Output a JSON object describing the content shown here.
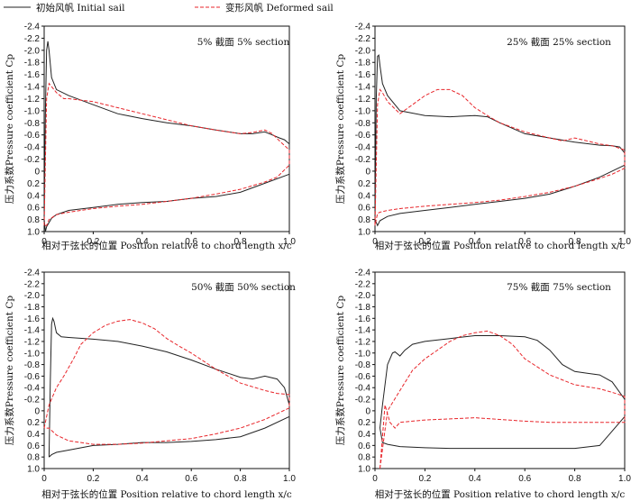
{
  "legend": {
    "initial": "初始风帆 Initial sail",
    "deformed": "变形风帆 Deformed sail"
  },
  "colors": {
    "initial": "#222222",
    "deformed": "#e8262b",
    "axis": "#111111"
  },
  "chart_data": [
    {
      "type": "line",
      "title": "5% 截面 5% section",
      "xlabel": "相对于弦长的位置 Position relative to chord length x/c",
      "ylabel": "压力系数Pressure coefficient Cp",
      "xlim": [
        0,
        1.0
      ],
      "ylim": [
        1.0,
        -2.4
      ],
      "xticks": [
        "0",
        "0.2",
        "0.4",
        "0.6",
        "0.8",
        "1.0"
      ],
      "xtick_values": [
        0,
        0.2,
        0.4,
        0.6,
        0.8,
        1.0
      ],
      "yticks": [
        "-2.4",
        "-2.2",
        "-2.0",
        "-1.8",
        "-1.6",
        "-1.4",
        "-1.2",
        "-1.0",
        "-0.8",
        "-0.6",
        "-0.4",
        "-0.2",
        "0",
        "0.2",
        "0.4",
        "0.6",
        "0.8",
        "1.0"
      ],
      "ytick_values": [
        -2.4,
        -2.2,
        -2.0,
        -1.8,
        -1.6,
        -1.4,
        -1.2,
        -1.0,
        -0.8,
        -0.6,
        -0.4,
        -0.2,
        0,
        0.2,
        0.4,
        0.6,
        0.8,
        1.0
      ],
      "series": [
        {
          "name": "初始风帆 Initial sail",
          "style": "solid",
          "x": [
            0.0,
            0.005,
            0.01,
            0.015,
            0.02,
            0.03,
            0.05,
            0.1,
            0.2,
            0.3,
            0.4,
            0.5,
            0.6,
            0.7,
            0.8,
            0.85,
            0.9,
            0.93,
            0.96,
            0.98,
            1.0,
            1.0,
            0.9,
            0.8,
            0.7,
            0.6,
            0.5,
            0.4,
            0.3,
            0.2,
            0.1,
            0.05,
            0.03,
            0.01,
            0.005,
            0.0
          ],
          "y": [
            0.8,
            -1.0,
            -2.0,
            -2.15,
            -2.0,
            -1.55,
            -1.35,
            -1.25,
            -1.1,
            -0.95,
            -0.87,
            -0.8,
            -0.75,
            -0.68,
            -0.62,
            -0.62,
            -0.65,
            -0.6,
            -0.55,
            -0.52,
            -0.45,
            0.05,
            0.2,
            0.35,
            0.42,
            0.45,
            0.5,
            0.52,
            0.55,
            0.6,
            0.65,
            0.72,
            0.78,
            0.92,
            1.0,
            0.8
          ]
        },
        {
          "name": "变形风帆 Deformed sail",
          "style": "dashed",
          "x": [
            0.0,
            0.01,
            0.02,
            0.03,
            0.05,
            0.08,
            0.1,
            0.2,
            0.3,
            0.4,
            0.5,
            0.6,
            0.7,
            0.8,
            0.85,
            0.9,
            0.93,
            0.96,
            1.0,
            1.0,
            0.95,
            0.9,
            0.8,
            0.7,
            0.6,
            0.5,
            0.4,
            0.3,
            0.2,
            0.1,
            0.05,
            0.02,
            0.01,
            0.0
          ],
          "y": [
            0.9,
            -1.2,
            -1.45,
            -1.4,
            -1.3,
            -1.2,
            -1.2,
            -1.15,
            -1.05,
            -0.95,
            -0.85,
            -0.75,
            -0.68,
            -0.62,
            -0.64,
            -0.68,
            -0.62,
            -0.5,
            -0.35,
            -0.1,
            0.1,
            0.18,
            0.3,
            0.38,
            0.45,
            0.5,
            0.55,
            0.58,
            0.62,
            0.68,
            0.72,
            0.8,
            0.9,
            0.9
          ]
        }
      ]
    },
    {
      "type": "line",
      "title": "25% 截面 25% section",
      "xlabel": "相对于弦长的位置 Position relative to chord length x/c",
      "ylabel": "压力系数Pressure coefficient Cp",
      "xlim": [
        0,
        1.0
      ],
      "ylim": [
        1.0,
        -2.4
      ],
      "xticks": [
        "0",
        "0.2",
        "0.4",
        "0.6",
        "0.8",
        "1.0"
      ],
      "xtick_values": [
        0,
        0.2,
        0.4,
        0.6,
        0.8,
        1.0
      ],
      "yticks": [
        "-2.4",
        "-2.2",
        "-2.0",
        "-1.8",
        "-1.6",
        "-1.4",
        "-1.2",
        "-1.0",
        "-0.8",
        "-0.6",
        "-0.4",
        "-0.2",
        "0",
        "0.2",
        "0.4",
        "0.6",
        "0.8",
        "1.0"
      ],
      "ytick_values": [
        -2.4,
        -2.2,
        -2.0,
        -1.8,
        -1.6,
        -1.4,
        -1.2,
        -1.0,
        -0.8,
        -0.6,
        -0.4,
        -0.2,
        0,
        0.2,
        0.4,
        0.6,
        0.8,
        1.0
      ],
      "series": [
        {
          "name": "初始风帆 Initial sail",
          "style": "solid",
          "x": [
            0.0,
            0.005,
            0.01,
            0.015,
            0.02,
            0.03,
            0.05,
            0.1,
            0.2,
            0.3,
            0.4,
            0.45,
            0.5,
            0.6,
            0.7,
            0.8,
            0.9,
            0.95,
            0.98,
            1.0,
            1.0,
            0.9,
            0.8,
            0.7,
            0.6,
            0.5,
            0.4,
            0.3,
            0.2,
            0.1,
            0.05,
            0.02,
            0.01,
            0.0
          ],
          "y": [
            0.8,
            -1.2,
            -1.9,
            -1.92,
            -1.75,
            -1.45,
            -1.25,
            -1.0,
            -0.92,
            -0.9,
            -0.92,
            -0.9,
            -0.8,
            -0.62,
            -0.55,
            -0.48,
            -0.43,
            -0.42,
            -0.4,
            -0.3,
            -0.1,
            0.1,
            0.25,
            0.38,
            0.45,
            0.5,
            0.55,
            0.6,
            0.65,
            0.7,
            0.75,
            0.82,
            0.9,
            0.8
          ]
        },
        {
          "name": "变形风帆 Deformed sail",
          "style": "dashed",
          "x": [
            0.0,
            0.01,
            0.02,
            0.03,
            0.05,
            0.1,
            0.15,
            0.2,
            0.25,
            0.3,
            0.35,
            0.4,
            0.45,
            0.5,
            0.6,
            0.7,
            0.75,
            0.8,
            0.9,
            0.95,
            1.0,
            1.0,
            0.95,
            0.9,
            0.8,
            0.7,
            0.6,
            0.5,
            0.4,
            0.3,
            0.2,
            0.1,
            0.05,
            0.02,
            0.01,
            0.0
          ],
          "y": [
            0.9,
            -1.1,
            -1.35,
            -1.3,
            -1.15,
            -0.95,
            -1.1,
            -1.25,
            -1.35,
            -1.35,
            -1.25,
            -1.05,
            -0.92,
            -0.8,
            -0.65,
            -0.55,
            -0.5,
            -0.55,
            -0.45,
            -0.42,
            -0.35,
            -0.05,
            0.05,
            0.12,
            0.25,
            0.35,
            0.42,
            0.48,
            0.52,
            0.55,
            0.58,
            0.62,
            0.65,
            0.68,
            0.7,
            0.9
          ]
        }
      ]
    },
    {
      "type": "line",
      "title": "50% 截面 50% section",
      "xlabel": "相对于弦长的位置 Position relative to chord length x/c",
      "ylabel": "压力系数Pressure coefficient Cp",
      "xlim": [
        0,
        1.0
      ],
      "ylim": [
        1.0,
        -2.4
      ],
      "xticks": [
        "0",
        "0.2",
        "0.4",
        "0.6",
        "0.8",
        "1.0"
      ],
      "xtick_values": [
        0,
        0.2,
        0.4,
        0.6,
        0.8,
        1.0
      ],
      "yticks": [
        "-2.4",
        "-2.2",
        "-2.0",
        "-1.8",
        "-1.6",
        "-1.4",
        "-1.2",
        "-1.0",
        "-0.8",
        "-0.6",
        "-0.4",
        "-0.2",
        "0",
        "0.2",
        "0.4",
        "0.6",
        "0.8",
        "1.0"
      ],
      "ytick_values": [
        -2.4,
        -2.2,
        -2.0,
        -1.8,
        -1.6,
        -1.4,
        -1.2,
        -1.0,
        -0.8,
        -0.6,
        -0.4,
        -0.2,
        0,
        0.2,
        0.4,
        0.6,
        0.8,
        1.0
      ],
      "series": [
        {
          "name": "初始风帆 Initial sail",
          "style": "solid",
          "x": [
            0.02,
            0.025,
            0.03,
            0.035,
            0.04,
            0.05,
            0.07,
            0.1,
            0.2,
            0.3,
            0.4,
            0.5,
            0.6,
            0.7,
            0.8,
            0.85,
            0.9,
            0.95,
            0.98,
            1.0,
            1.0,
            0.9,
            0.8,
            0.7,
            0.6,
            0.5,
            0.4,
            0.3,
            0.2,
            0.1,
            0.05,
            0.03,
            0.02
          ],
          "y": [
            0.8,
            -0.5,
            -1.5,
            -1.6,
            -1.55,
            -1.35,
            -1.28,
            -1.27,
            -1.24,
            -1.2,
            -1.12,
            -1.02,
            -0.88,
            -0.72,
            -0.58,
            -0.55,
            -0.6,
            -0.55,
            -0.4,
            -0.1,
            0.1,
            0.3,
            0.45,
            0.5,
            0.53,
            0.55,
            0.55,
            0.58,
            0.6,
            0.68,
            0.72,
            0.76,
            0.8
          ]
        },
        {
          "name": "变形风帆 Deformed sail",
          "style": "dashed",
          "x": [
            0.0,
            0.02,
            0.05,
            0.08,
            0.12,
            0.15,
            0.2,
            0.25,
            0.3,
            0.35,
            0.4,
            0.45,
            0.5,
            0.55,
            0.6,
            0.7,
            0.8,
            0.9,
            0.95,
            1.0,
            1.0,
            0.9,
            0.8,
            0.7,
            0.6,
            0.5,
            0.4,
            0.3,
            0.2,
            0.1,
            0.05,
            0.02,
            0.0
          ],
          "y": [
            0.3,
            -0.1,
            -0.4,
            -0.6,
            -0.9,
            -1.15,
            -1.35,
            -1.48,
            -1.55,
            -1.58,
            -1.52,
            -1.42,
            -1.25,
            -1.12,
            -1.0,
            -0.72,
            -0.48,
            -0.35,
            -0.3,
            -0.28,
            -0.05,
            0.15,
            0.3,
            0.4,
            0.48,
            0.52,
            0.56,
            0.58,
            0.58,
            0.52,
            0.42,
            0.3,
            0.3
          ]
        }
      ]
    },
    {
      "type": "line",
      "title": "75% 截面 75% section",
      "xlabel": "相对于弦长的位置 Position relative to chord length x/c",
      "ylabel": "压力系数Pressure coefficient Cp",
      "xlim": [
        0,
        1.0
      ],
      "ylim": [
        1.0,
        -2.4
      ],
      "xticks": [
        "0",
        "0.2",
        "0.4",
        "0.6",
        "0.8",
        "1.0"
      ],
      "xtick_values": [
        0,
        0.2,
        0.4,
        0.6,
        0.8,
        1.0
      ],
      "yticks": [
        "-2.4",
        "-2.2",
        "-2.0",
        "-1.8",
        "-1.6",
        "-1.4",
        "-1.2",
        "-1.0",
        "-0.8",
        "-0.6",
        "-0.4",
        "-0.2",
        "0",
        "0.2",
        "0.4",
        "0.6",
        "0.8",
        "1.0"
      ],
      "ytick_values": [
        -2.4,
        -2.2,
        -2.0,
        -1.8,
        -1.6,
        -1.4,
        -1.2,
        -1.0,
        -0.8,
        -0.6,
        -0.4,
        -0.2,
        0,
        0.2,
        0.4,
        0.6,
        0.8,
        1.0
      ],
      "series": [
        {
          "name": "初始风帆 Initial sail",
          "style": "solid",
          "x": [
            0.02,
            0.03,
            0.05,
            0.07,
            0.08,
            0.1,
            0.12,
            0.15,
            0.2,
            0.3,
            0.4,
            0.5,
            0.6,
            0.65,
            0.7,
            0.75,
            0.8,
            0.85,
            0.9,
            0.95,
            1.0,
            1.0,
            0.9,
            0.8,
            0.7,
            0.6,
            0.5,
            0.4,
            0.3,
            0.2,
            0.1,
            0.05,
            0.03,
            0.02
          ],
          "y": [
            0.3,
            -0.1,
            -0.8,
            -1.0,
            -1.02,
            -0.95,
            -1.05,
            -1.15,
            -1.2,
            -1.25,
            -1.3,
            -1.3,
            -1.28,
            -1.22,
            -1.05,
            -0.8,
            -0.68,
            -0.65,
            -0.62,
            -0.5,
            -0.2,
            0.1,
            0.6,
            0.65,
            0.65,
            0.65,
            0.65,
            0.65,
            0.65,
            0.64,
            0.62,
            0.58,
            0.55,
            0.3
          ]
        },
        {
          "name": "变形风帆 Deformed sail",
          "style": "dashed",
          "x": [
            0.02,
            0.05,
            0.1,
            0.15,
            0.2,
            0.25,
            0.3,
            0.35,
            0.4,
            0.45,
            0.5,
            0.55,
            0.6,
            0.7,
            0.8,
            0.9,
            0.95,
            1.0,
            1.0,
            0.9,
            0.8,
            0.7,
            0.6,
            0.5,
            0.4,
            0.3,
            0.2,
            0.1,
            0.08,
            0.06,
            0.04,
            0.02
          ],
          "y": [
            1.0,
            0.0,
            -0.35,
            -0.7,
            -0.9,
            -1.05,
            -1.2,
            -1.3,
            -1.35,
            -1.38,
            -1.3,
            -1.15,
            -0.9,
            -0.62,
            -0.45,
            -0.38,
            -0.32,
            -0.25,
            0.2,
            0.2,
            0.2,
            0.2,
            0.18,
            0.15,
            0.12,
            0.14,
            0.16,
            0.2,
            0.3,
            0.2,
            -0.1,
            1.0
          ]
        }
      ]
    }
  ]
}
